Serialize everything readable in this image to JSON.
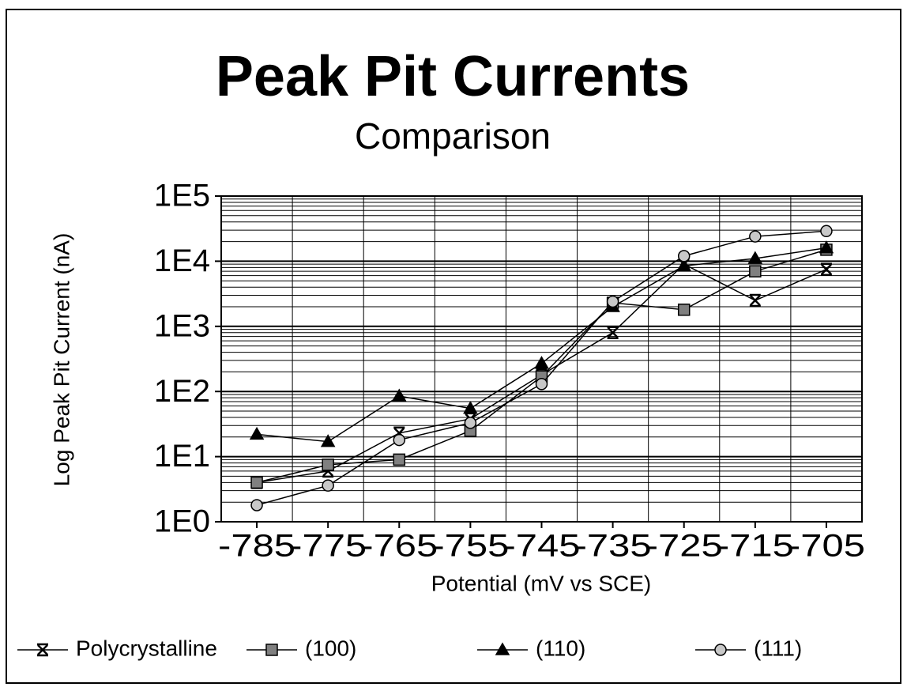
{
  "chart_data": {
    "type": "line",
    "title": "Peak Pit Currents",
    "subtitle": "Comparison",
    "x_label": "Potential (mV vs SCE)",
    "y_label": "Log Peak Pit Current (nA)",
    "x": [
      -785,
      -775,
      -765,
      -755,
      -745,
      -735,
      -725,
      -715,
      -705
    ],
    "xlim": [
      -790,
      -700
    ],
    "xticks": [
      -785,
      -775,
      -765,
      -755,
      -745,
      -735,
      -725,
      -715,
      -705
    ],
    "ylim": [
      1,
      100000
    ],
    "yticks": [
      {
        "value": 1,
        "label": "1E0"
      },
      {
        "value": 10,
        "label": "1E1"
      },
      {
        "value": 100,
        "label": "1E2"
      },
      {
        "value": 1000,
        "label": "1E3"
      },
      {
        "value": 10000,
        "label": "1E4"
      },
      {
        "value": 100000,
        "label": "1E5"
      }
    ],
    "y_scale": "log",
    "grid": true,
    "minor_grid": true,
    "legend": "bottom",
    "series": [
      {
        "name": "Polycrystalline",
        "color": "#000000",
        "marker": "x",
        "values": [
          4,
          6,
          23,
          38,
          180,
          800,
          9000,
          2500,
          7500
        ]
      },
      {
        "name": "(100)",
        "color": "#808080",
        "marker": "square",
        "values": [
          4,
          7.5,
          9,
          25,
          170,
          2300,
          1800,
          7000,
          15000
        ]
      },
      {
        "name": "(110)",
        "color": "#000000",
        "marker": "triangle",
        "values": [
          22,
          17,
          85,
          55,
          270,
          2000,
          8500,
          11000,
          16000
        ]
      },
      {
        "name": "(111)",
        "color": "#c8c8c8",
        "marker": "circle",
        "values": [
          1.8,
          3.6,
          18,
          33,
          130,
          2400,
          12000,
          24000,
          29000
        ]
      }
    ]
  }
}
